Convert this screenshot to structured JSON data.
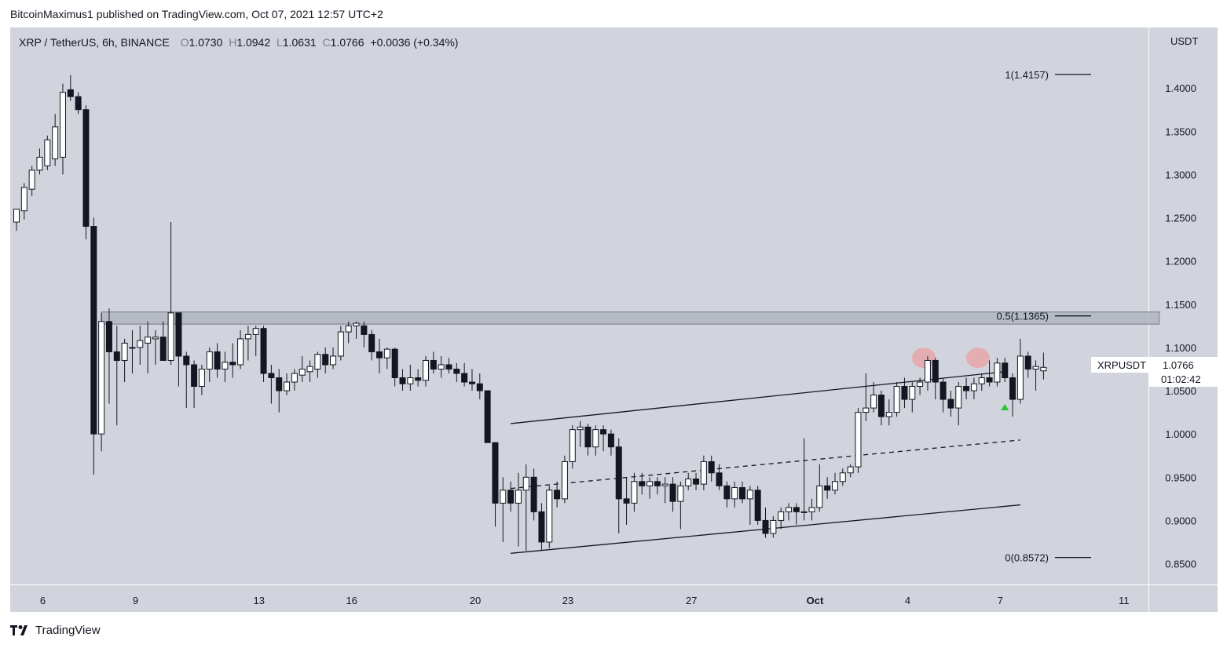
{
  "header": {
    "attribution": "BitcoinMaximus1 published on TradingView.com, Oct 07, 2021 12:57 UTC+2"
  },
  "legend": {
    "symbol": "XRP / TetherUS, 6h, BINANCE",
    "o_label": "O",
    "o_value": "1.0730",
    "h_label": "H",
    "h_value": "1.0942",
    "l_label": "L",
    "l_value": "1.0631",
    "c_label": "C",
    "c_value": "1.0766",
    "change": "+0.0036 (+0.34%)"
  },
  "price_scale": {
    "currency": "USDT",
    "ticks": [
      "1.4000",
      "1.3500",
      "1.3000",
      "1.2500",
      "1.2000",
      "1.1500",
      "1.1000",
      "1.0500",
      "1.0000",
      "0.9500",
      "0.9000",
      "0.8500"
    ]
  },
  "price_label": {
    "symbol": "XRPUSDT",
    "price": "1.0766",
    "countdown": "01:02:42"
  },
  "fib_levels": [
    {
      "label": "1(1.4157)",
      "price": 1.4157
    },
    {
      "label": "0.5(1.1365)",
      "price": 1.1365
    },
    {
      "label": "0(0.8572)",
      "price": 0.8572
    }
  ],
  "footer": {
    "brand": "TradingView"
  },
  "colors": {
    "plot_bg": "#d1d4dc",
    "up_body": "#ffffff",
    "down_body": "#131722",
    "highlight": "#e8a0a4",
    "arrow": "#26c632",
    "zone": "#b2b5be"
  },
  "chart_data": {
    "type": "candlestick",
    "title": "",
    "ylim": [
      0.826,
      1.47
    ],
    "x_ticks": [
      {
        "label": "6",
        "bar": 3
      },
      {
        "label": "9",
        "bar": 15
      },
      {
        "label": "13",
        "bar": 31
      },
      {
        "label": "16",
        "bar": 43
      },
      {
        "label": "20",
        "bar": 59
      },
      {
        "label": "23",
        "bar": 71
      },
      {
        "label": "27",
        "bar": 87
      },
      {
        "label": "Oct",
        "bar": 103
      },
      {
        "label": "4",
        "bar": 115
      },
      {
        "label": "7",
        "bar": 127
      },
      {
        "label": "11",
        "bar": 143
      }
    ],
    "candles": [
      {
        "o": 1.245,
        "h": 1.255,
        "l": 1.235,
        "c": 1.26
      },
      {
        "o": 1.258,
        "h": 1.29,
        "l": 1.248,
        "c": 1.285
      },
      {
        "o": 1.283,
        "h": 1.31,
        "l": 1.275,
        "c": 1.305
      },
      {
        "o": 1.305,
        "h": 1.33,
        "l": 1.3,
        "c": 1.32
      },
      {
        "o": 1.31,
        "h": 1.345,
        "l": 1.305,
        "c": 1.34
      },
      {
        "o": 1.318,
        "h": 1.37,
        "l": 1.31,
        "c": 1.355
      },
      {
        "o": 1.32,
        "h": 1.405,
        "l": 1.3,
        "c": 1.395
      },
      {
        "o": 1.398,
        "h": 1.415,
        "l": 1.385,
        "c": 1.39
      },
      {
        "o": 1.39,
        "h": 1.395,
        "l": 1.37,
        "c": 1.375
      },
      {
        "o": 1.375,
        "h": 1.38,
        "l": 1.225,
        "c": 1.24
      },
      {
        "o": 1.24,
        "h": 1.25,
        "l": 0.953,
        "c": 1.0
      },
      {
        "o": 1.0,
        "h": 1.14,
        "l": 0.98,
        "c": 1.13
      },
      {
        "o": 1.13,
        "h": 1.145,
        "l": 1.035,
        "c": 1.095
      },
      {
        "o": 1.095,
        "h": 1.125,
        "l": 1.01,
        "c": 1.085
      },
      {
        "o": 1.085,
        "h": 1.11,
        "l": 1.06,
        "c": 1.105
      },
      {
        "o": 1.1,
        "h": 1.12,
        "l": 1.07,
        "c": 1.1
      },
      {
        "o": 1.1,
        "h": 1.125,
        "l": 1.08,
        "c": 1.108
      },
      {
        "o": 1.105,
        "h": 1.13,
        "l": 1.07,
        "c": 1.112
      },
      {
        "o": 1.11,
        "h": 1.12,
        "l": 1.08,
        "c": 1.112
      },
      {
        "o": 1.112,
        "h": 1.13,
        "l": 1.085,
        "c": 1.085
      },
      {
        "o": 1.085,
        "h": 1.245,
        "l": 1.08,
        "c": 1.14
      },
      {
        "o": 1.14,
        "h": 1.14,
        "l": 1.055,
        "c": 1.09
      },
      {
        "o": 1.09,
        "h": 1.095,
        "l": 1.03,
        "c": 1.08
      },
      {
        "o": 1.08,
        "h": 1.085,
        "l": 1.03,
        "c": 1.055
      },
      {
        "o": 1.055,
        "h": 1.08,
        "l": 1.045,
        "c": 1.075
      },
      {
        "o": 1.075,
        "h": 1.1,
        "l": 1.06,
        "c": 1.095
      },
      {
        "o": 1.095,
        "h": 1.105,
        "l": 1.065,
        "c": 1.075
      },
      {
        "o": 1.075,
        "h": 1.095,
        "l": 1.06,
        "c": 1.083
      },
      {
        "o": 1.083,
        "h": 1.105,
        "l": 1.065,
        "c": 1.08
      },
      {
        "o": 1.08,
        "h": 1.12,
        "l": 1.075,
        "c": 1.11
      },
      {
        "o": 1.11,
        "h": 1.125,
        "l": 1.085,
        "c": 1.115
      },
      {
        "o": 1.115,
        "h": 1.125,
        "l": 1.09,
        "c": 1.122
      },
      {
        "o": 1.122,
        "h": 1.125,
        "l": 1.06,
        "c": 1.07
      },
      {
        "o": 1.07,
        "h": 1.08,
        "l": 1.035,
        "c": 1.065
      },
      {
        "o": 1.065,
        "h": 1.075,
        "l": 1.025,
        "c": 1.05
      },
      {
        "o": 1.05,
        "h": 1.07,
        "l": 1.045,
        "c": 1.06
      },
      {
        "o": 1.06,
        "h": 1.075,
        "l": 1.05,
        "c": 1.07
      },
      {
        "o": 1.068,
        "h": 1.09,
        "l": 1.06,
        "c": 1.075
      },
      {
        "o": 1.072,
        "h": 1.085,
        "l": 1.06,
        "c": 1.078
      },
      {
        "o": 1.075,
        "h": 1.095,
        "l": 1.065,
        "c": 1.092
      },
      {
        "o": 1.092,
        "h": 1.1,
        "l": 1.07,
        "c": 1.08
      },
      {
        "o": 1.08,
        "h": 1.1,
        "l": 1.075,
        "c": 1.09
      },
      {
        "o": 1.09,
        "h": 1.125,
        "l": 1.085,
        "c": 1.118
      },
      {
        "o": 1.118,
        "h": 1.13,
        "l": 1.105,
        "c": 1.125
      },
      {
        "o": 1.125,
        "h": 1.13,
        "l": 1.11,
        "c": 1.128
      },
      {
        "o": 1.125,
        "h": 1.13,
        "l": 1.1,
        "c": 1.115
      },
      {
        "o": 1.115,
        "h": 1.12,
        "l": 1.085,
        "c": 1.095
      },
      {
        "o": 1.095,
        "h": 1.11,
        "l": 1.07,
        "c": 1.088
      },
      {
        "o": 1.088,
        "h": 1.1,
        "l": 1.075,
        "c": 1.098
      },
      {
        "o": 1.098,
        "h": 1.1,
        "l": 1.055,
        "c": 1.065
      },
      {
        "o": 1.065,
        "h": 1.075,
        "l": 1.05,
        "c": 1.058
      },
      {
        "o": 1.058,
        "h": 1.08,
        "l": 1.05,
        "c": 1.065
      },
      {
        "o": 1.065,
        "h": 1.075,
        "l": 1.055,
        "c": 1.062
      },
      {
        "o": 1.062,
        "h": 1.09,
        "l": 1.055,
        "c": 1.085
      },
      {
        "o": 1.085,
        "h": 1.095,
        "l": 1.07,
        "c": 1.075
      },
      {
        "o": 1.075,
        "h": 1.09,
        "l": 1.065,
        "c": 1.08
      },
      {
        "o": 1.08,
        "h": 1.088,
        "l": 1.07,
        "c": 1.075
      },
      {
        "o": 1.075,
        "h": 1.082,
        "l": 1.06,
        "c": 1.07
      },
      {
        "o": 1.07,
        "h": 1.082,
        "l": 1.055,
        "c": 1.06
      },
      {
        "o": 1.06,
        "h": 1.075,
        "l": 1.05,
        "c": 1.058
      },
      {
        "o": 1.058,
        "h": 1.07,
        "l": 1.04,
        "c": 1.05
      },
      {
        "o": 1.05,
        "h": 1.05,
        "l": 0.99,
        "c": 0.99
      },
      {
        "o": 0.99,
        "h": 0.99,
        "l": 0.893,
        "c": 0.92
      },
      {
        "o": 0.92,
        "h": 0.95,
        "l": 0.875,
        "c": 0.935
      },
      {
        "o": 0.935,
        "h": 0.945,
        "l": 0.91,
        "c": 0.92
      },
      {
        "o": 0.92,
        "h": 0.955,
        "l": 0.87,
        "c": 0.935
      },
      {
        "o": 0.935,
        "h": 0.965,
        "l": 0.865,
        "c": 0.95
      },
      {
        "o": 0.95,
        "h": 0.96,
        "l": 0.9,
        "c": 0.91
      },
      {
        "o": 0.91,
        "h": 0.92,
        "l": 0.865,
        "c": 0.875
      },
      {
        "o": 0.875,
        "h": 0.94,
        "l": 0.868,
        "c": 0.935
      },
      {
        "o": 0.935,
        "h": 0.945,
        "l": 0.915,
        "c": 0.925
      },
      {
        "o": 0.925,
        "h": 0.975,
        "l": 0.92,
        "c": 0.968
      },
      {
        "o": 0.968,
        "h": 1.01,
        "l": 0.96,
        "c": 1.005
      },
      {
        "o": 1.005,
        "h": 1.015,
        "l": 0.985,
        "c": 1.008
      },
      {
        "o": 1.008,
        "h": 1.012,
        "l": 0.975,
        "c": 0.985
      },
      {
        "o": 0.985,
        "h": 1.01,
        "l": 0.975,
        "c": 1.005
      },
      {
        "o": 1.005,
        "h": 1.01,
        "l": 0.98,
        "c": 1.0
      },
      {
        "o": 1.0,
        "h": 1.005,
        "l": 0.975,
        "c": 0.985
      },
      {
        "o": 0.985,
        "h": 0.995,
        "l": 0.885,
        "c": 0.925
      },
      {
        "o": 0.925,
        "h": 0.95,
        "l": 0.895,
        "c": 0.92
      },
      {
        "o": 0.92,
        "h": 0.955,
        "l": 0.91,
        "c": 0.945
      },
      {
        "o": 0.945,
        "h": 0.955,
        "l": 0.93,
        "c": 0.94
      },
      {
        "o": 0.94,
        "h": 0.95,
        "l": 0.925,
        "c": 0.945
      },
      {
        "o": 0.945,
        "h": 0.95,
        "l": 0.93,
        "c": 0.94
      },
      {
        "o": 0.94,
        "h": 0.95,
        "l": 0.92,
        "c": 0.942
      },
      {
        "o": 0.942,
        "h": 0.95,
        "l": 0.91,
        "c": 0.922
      },
      {
        "o": 0.922,
        "h": 0.945,
        "l": 0.89,
        "c": 0.94
      },
      {
        "o": 0.94,
        "h": 0.955,
        "l": 0.935,
        "c": 0.948
      },
      {
        "o": 0.948,
        "h": 0.955,
        "l": 0.935,
        "c": 0.942
      },
      {
        "o": 0.942,
        "h": 0.975,
        "l": 0.935,
        "c": 0.968
      },
      {
        "o": 0.968,
        "h": 0.975,
        "l": 0.945,
        "c": 0.955
      },
      {
        "o": 0.955,
        "h": 0.965,
        "l": 0.935,
        "c": 0.94
      },
      {
        "o": 0.94,
        "h": 0.945,
        "l": 0.915,
        "c": 0.925
      },
      {
        "o": 0.925,
        "h": 0.945,
        "l": 0.915,
        "c": 0.938
      },
      {
        "o": 0.938,
        "h": 0.945,
        "l": 0.92,
        "c": 0.925
      },
      {
        "o": 0.925,
        "h": 0.94,
        "l": 0.895,
        "c": 0.935
      },
      {
        "o": 0.935,
        "h": 0.94,
        "l": 0.895,
        "c": 0.9
      },
      {
        "o": 0.9,
        "h": 0.915,
        "l": 0.88,
        "c": 0.885
      },
      {
        "o": 0.885,
        "h": 0.905,
        "l": 0.88,
        "c": 0.9
      },
      {
        "o": 0.9,
        "h": 0.915,
        "l": 0.89,
        "c": 0.91
      },
      {
        "o": 0.91,
        "h": 0.92,
        "l": 0.9,
        "c": 0.915
      },
      {
        "o": 0.915,
        "h": 0.92,
        "l": 0.895,
        "c": 0.91
      },
      {
        "o": 0.91,
        "h": 0.995,
        "l": 0.9,
        "c": 0.91
      },
      {
        "o": 0.91,
        "h": 0.925,
        "l": 0.9,
        "c": 0.915
      },
      {
        "o": 0.915,
        "h": 0.965,
        "l": 0.91,
        "c": 0.94
      },
      {
        "o": 0.94,
        "h": 0.95,
        "l": 0.925,
        "c": 0.935
      },
      {
        "o": 0.935,
        "h": 0.955,
        "l": 0.93,
        "c": 0.945
      },
      {
        "o": 0.945,
        "h": 0.96,
        "l": 0.94,
        "c": 0.955
      },
      {
        "o": 0.955,
        "h": 0.965,
        "l": 0.95,
        "c": 0.962
      },
      {
        "o": 0.962,
        "h": 1.03,
        "l": 0.955,
        "c": 1.025
      },
      {
        "o": 1.025,
        "h": 1.07,
        "l": 1.015,
        "c": 1.03
      },
      {
        "o": 1.03,
        "h": 1.06,
        "l": 1.025,
        "c": 1.045
      },
      {
        "o": 1.045,
        "h": 1.05,
        "l": 1.01,
        "c": 1.02
      },
      {
        "o": 1.02,
        "h": 1.04,
        "l": 1.01,
        "c": 1.025
      },
      {
        "o": 1.025,
        "h": 1.06,
        "l": 1.02,
        "c": 1.055
      },
      {
        "o": 1.055,
        "h": 1.065,
        "l": 1.03,
        "c": 1.04
      },
      {
        "o": 1.04,
        "h": 1.06,
        "l": 1.025,
        "c": 1.055
      },
      {
        "o": 1.055,
        "h": 1.065,
        "l": 1.045,
        "c": 1.06
      },
      {
        "o": 1.06,
        "h": 1.09,
        "l": 1.05,
        "c": 1.085
      },
      {
        "o": 1.085,
        "h": 1.088,
        "l": 1.04,
        "c": 1.06
      },
      {
        "o": 1.06,
        "h": 1.065,
        "l": 1.025,
        "c": 1.04
      },
      {
        "o": 1.04,
        "h": 1.05,
        "l": 1.02,
        "c": 1.03
      },
      {
        "o": 1.03,
        "h": 1.06,
        "l": 1.01,
        "c": 1.055
      },
      {
        "o": 1.055,
        "h": 1.065,
        "l": 1.04,
        "c": 1.05
      },
      {
        "o": 1.05,
        "h": 1.065,
        "l": 1.04,
        "c": 1.058
      },
      {
        "o": 1.058,
        "h": 1.07,
        "l": 1.05,
        "c": 1.065
      },
      {
        "o": 1.065,
        "h": 1.085,
        "l": 1.055,
        "c": 1.06
      },
      {
        "o": 1.06,
        "h": 1.088,
        "l": 1.055,
        "c": 1.082
      },
      {
        "o": 1.082,
        "h": 1.088,
        "l": 1.06,
        "c": 1.065
      },
      {
        "o": 1.065,
        "h": 1.07,
        "l": 1.02,
        "c": 1.04
      },
      {
        "o": 1.04,
        "h": 1.11,
        "l": 1.035,
        "c": 1.09
      },
      {
        "o": 1.09,
        "h": 1.095,
        "l": 1.065,
        "c": 1.075
      },
      {
        "o": 1.075,
        "h": 1.085,
        "l": 1.05,
        "c": 1.078
      },
      {
        "o": 1.073,
        "h": 1.094,
        "l": 1.063,
        "c": 1.077
      }
    ],
    "resistance_zone": {
      "top": 1.141,
      "bottom": 1.127,
      "x_start_bar": 11,
      "x_end_bar": 148
    },
    "channel_lines": [
      {
        "name": "channel-upper",
        "style": "solid",
        "from": {
          "bar": 64,
          "price": 1.012
        },
        "to": {
          "bar": 128,
          "price": 1.072
        }
      },
      {
        "name": "channel-middle",
        "style": "dashed",
        "from": {
          "bar": 64,
          "price": 0.937
        },
        "to": {
          "bar": 130,
          "price": 0.993
        }
      },
      {
        "name": "channel-lower",
        "style": "solid",
        "from": {
          "bar": 64,
          "price": 0.862
        },
        "to": {
          "bar": 130,
          "price": 0.918
        }
      }
    ],
    "highlights": [
      {
        "bar": 117.5,
        "price": 1.088
      },
      {
        "bar": 124.5,
        "price": 1.088
      }
    ],
    "arrow": {
      "bar": 128,
      "price": 1.031
    }
  }
}
